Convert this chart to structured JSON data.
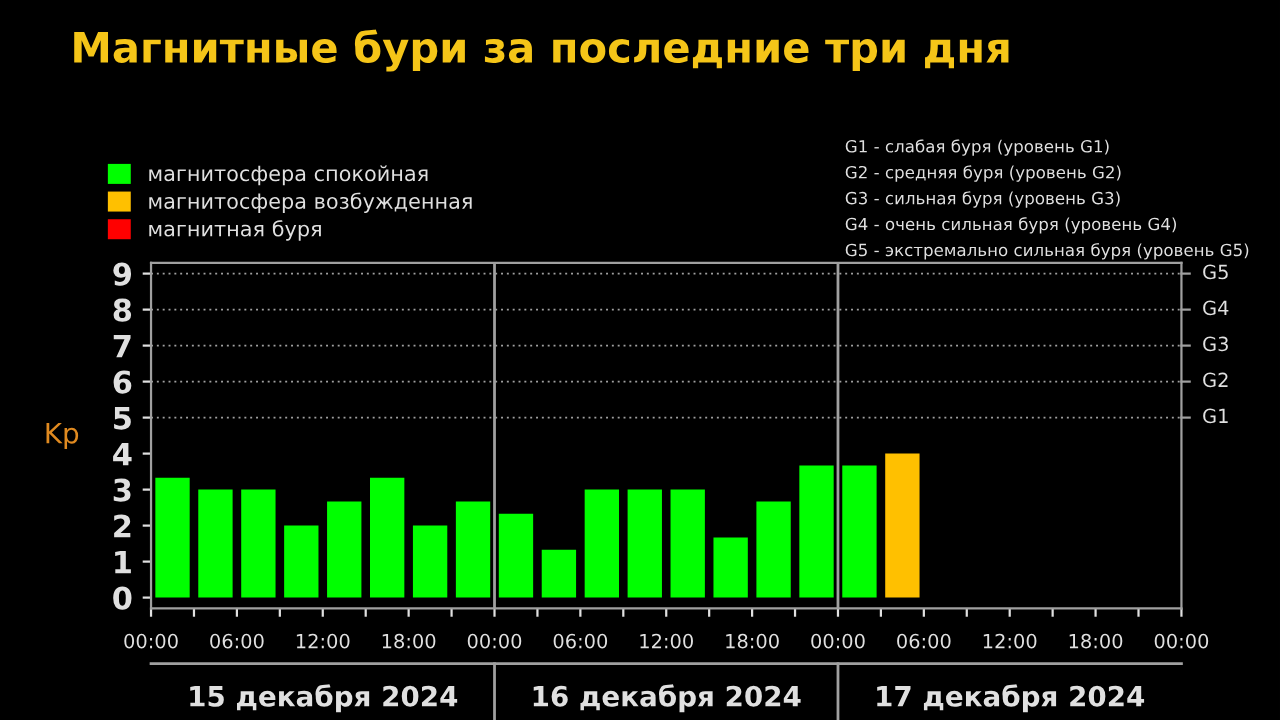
{
  "chart_data": {
    "type": "bar",
    "title": "Магнитные бури за последние три дня",
    "ylabel": "Kp",
    "x": [
      "2024-12-15T01:30",
      "2024-12-15T04:30",
      "2024-12-15T07:30",
      "2024-12-15T10:30",
      "2024-12-15T13:30",
      "2024-12-15T16:30",
      "2024-12-15T19:30",
      "2024-12-15T22:30",
      "2024-12-16T01:30",
      "2024-12-16T04:30",
      "2024-12-16T07:30",
      "2024-12-16T10:30",
      "2024-12-16T13:30",
      "2024-12-16T16:30",
      "2024-12-16T19:30",
      "2024-12-16T22:30",
      "2024-12-17T01:30",
      "2024-12-17T04:30"
    ],
    "series": [
      {
        "name": "магнитосфера спокойная",
        "color": "#00ff00",
        "values": [
          3.33,
          3,
          3,
          2,
          2.67,
          3.33,
          2,
          2.67,
          2.33,
          1.33,
          3,
          3,
          3,
          1.67,
          2.67,
          3.67,
          3.67,
          null
        ]
      },
      {
        "name": "магнитосфера возбужденная",
        "color": "#ffc000",
        "values": [
          null,
          null,
          null,
          null,
          null,
          null,
          null,
          null,
          null,
          null,
          null,
          null,
          null,
          null,
          null,
          null,
          null,
          4
        ]
      },
      {
        "name": "магнитная буря",
        "color": "#ff0000",
        "values": [
          null,
          null,
          null,
          null,
          null,
          null,
          null,
          null,
          null,
          null,
          null,
          null,
          null,
          null,
          null,
          null,
          null,
          null
        ]
      }
    ],
    "xlim": [
      "2024-12-15T00:00",
      "2024-12-18T00:00"
    ],
    "xticks": [
      {
        "value": "2024-12-15T00:00",
        "label": "00:00"
      },
      {
        "value": "2024-12-15T03:00",
        "label": null
      },
      {
        "value": "2024-12-15T06:00",
        "label": "06:00"
      },
      {
        "value": "2024-12-15T09:00",
        "label": null
      },
      {
        "value": "2024-12-15T12:00",
        "label": "12:00"
      },
      {
        "value": "2024-12-15T15:00",
        "label": null
      },
      {
        "value": "2024-12-15T18:00",
        "label": "18:00"
      },
      {
        "value": "2024-12-15T21:00",
        "label": null
      },
      {
        "value": "2024-12-16T00:00",
        "label": "00:00"
      },
      {
        "value": "2024-12-16T03:00",
        "label": null
      },
      {
        "value": "2024-12-16T06:00",
        "label": "06:00"
      },
      {
        "value": "2024-12-16T09:00",
        "label": null
      },
      {
        "value": "2024-12-16T12:00",
        "label": "12:00"
      },
      {
        "value": "2024-12-16T15:00",
        "label": null
      },
      {
        "value": "2024-12-16T18:00",
        "label": "18:00"
      },
      {
        "value": "2024-12-16T21:00",
        "label": null
      },
      {
        "value": "2024-12-17T00:00",
        "label": "00:00"
      },
      {
        "value": "2024-12-17T03:00",
        "label": null
      },
      {
        "value": "2024-12-17T06:00",
        "label": "06:00"
      },
      {
        "value": "2024-12-17T09:00",
        "label": null
      },
      {
        "value": "2024-12-17T12:00",
        "label": "12:00"
      },
      {
        "value": "2024-12-17T15:00",
        "label": null
      },
      {
        "value": "2024-12-17T18:00",
        "label": "18:00"
      },
      {
        "value": "2024-12-17T21:00",
        "label": null
      },
      {
        "value": "2024-12-18T00:00",
        "label": "00:00"
      }
    ],
    "ylim": [
      -0.3,
      9.3
    ],
    "yticks": [
      0,
      1,
      2,
      3,
      4,
      5,
      6,
      7,
      8,
      9
    ],
    "ref_lines": [
      {
        "axis": "x",
        "value": "2024-12-16T00:00",
        "label": null,
        "color": "#a0a0a0",
        "line_style": "solid"
      },
      {
        "axis": "x",
        "value": "2024-12-17T00:00",
        "label": null,
        "color": "#a0a0a0",
        "line_style": "solid"
      },
      {
        "axis": "y",
        "value": 5,
        "label": "G1",
        "color": "#a0a0a0",
        "line_style": "dotted"
      },
      {
        "axis": "y",
        "value": 6,
        "label": "G2",
        "color": "#a0a0a0",
        "line_style": "dotted"
      },
      {
        "axis": "y",
        "value": 7,
        "label": "G3",
        "color": "#a0a0a0",
        "line_style": "dotted"
      },
      {
        "axis": "y",
        "value": 8,
        "label": "G4",
        "color": "#a0a0a0",
        "line_style": "dotted"
      },
      {
        "axis": "y",
        "value": 9,
        "label": "G5",
        "color": "#a0a0a0",
        "line_style": "dotted"
      }
    ],
    "annotations": [
      "G1 - слабая буря (уровень G1)",
      "G2 - средняя буря (уровень G2)",
      "G3 - сильная буря (уровень G3)",
      "G4 - очень сильная буря (уровень G4)",
      "G5 - экстремально сильная буря (уровень G5)",
      "15 декабря 2024",
      "16 декабря 2024",
      "17 декабря 2024"
    ],
    "legend": "top left"
  }
}
